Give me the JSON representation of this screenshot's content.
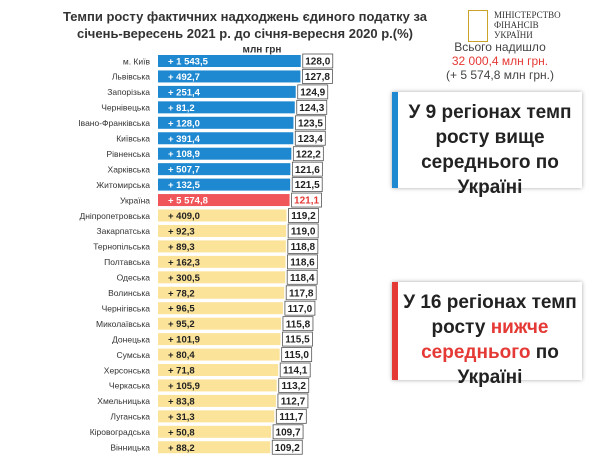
{
  "chart_data": {
    "type": "bar",
    "orientation": "horizontal",
    "title": "Темпи росту фактичних надходжень єдиного податку за січень-вересень 2021 р. до січня-вересня 2020 р.(%)",
    "unit_label": "млн грн",
    "categories": [
      "м. Київ",
      "Львівська",
      "Запорізька",
      "Чернівецька",
      "Івано-Франківська",
      "Київська",
      "Рівненська",
      "Харківська",
      "Житомирська",
      "Україна",
      "Дніпропетровська",
      "Закарпатська",
      "Тернопільська",
      "Полтавська",
      "Одеська",
      "Волинська",
      "Чернігівська",
      "Миколаївська",
      "Донецька",
      "Сумська",
      "Херсонська",
      "Черкаська",
      "Хмельницька",
      "Луганська",
      "Кіровоградська",
      "Вінницька"
    ],
    "values": [
      128.0,
      127.8,
      124.9,
      124.3,
      123.5,
      123.4,
      122.2,
      121.6,
      121.5,
      121.1,
      119.2,
      119.0,
      118.8,
      118.6,
      118.4,
      117.8,
      117.0,
      115.8,
      115.5,
      115.0,
      114.1,
      113.2,
      112.7,
      111.7,
      109.7,
      109.2
    ],
    "value_labels": [
      "128,0",
      "127,8",
      "124,9",
      "124,3",
      "123,5",
      "123,4",
      "122,2",
      "121,6",
      "121,5",
      "121,1",
      "119,2",
      "119,0",
      "118,8",
      "118,6",
      "118,4",
      "117,8",
      "117,0",
      "115,8",
      "115,5",
      "115,0",
      "114,1",
      "113,2",
      "112,7",
      "111,7",
      "109,7",
      "109,2"
    ],
    "increase_labels": [
      "+ 1 543,5",
      "+ 492,7",
      "+ 251,4",
      "+ 81,2",
      "+ 128,0",
      "+ 391,4",
      "+ 108,9",
      "+ 507,7",
      "+ 132,5",
      "+ 5 574,8",
      "+ 409,0",
      "+ 92,3",
      "+ 89,3",
      "+ 162,3",
      "+ 300,5",
      "+ 78,2",
      "+ 96,5",
      "+ 95,2",
      "+ 101,9",
      "+ 80,4",
      "+ 71,8",
      "+ 105,9",
      "+ 83,8",
      "+ 31,3",
      "+ 50,8",
      "+ 88,2"
    ],
    "colors": [
      "#1e88d0",
      "#1e88d0",
      "#1e88d0",
      "#1e88d0",
      "#1e88d0",
      "#1e88d0",
      "#1e88d0",
      "#1e88d0",
      "#1e88d0",
      "#f0555a",
      "#fbe39a",
      "#fbe39a",
      "#fbe39a",
      "#fbe39a",
      "#fbe39a",
      "#fbe39a",
      "#fbe39a",
      "#fbe39a",
      "#fbe39a",
      "#fbe39a",
      "#fbe39a",
      "#fbe39a",
      "#fbe39a",
      "#fbe39a",
      "#fbe39a",
      "#fbe39a"
    ],
    "xlim": [
      40,
      130
    ]
  },
  "logo": {
    "lines": [
      "МІНІСТЕРСТВО",
      "ФІНАНСІВ",
      "УКРАЇНИ"
    ]
  },
  "total": {
    "caption": "Всього надишло",
    "amount": "32 000,4 млн грн.",
    "increase": "(+ 5 574,8 млн грн.)"
  },
  "box_above": {
    "text": "У 9 регіонах темп росту вище середнього по Україні"
  },
  "box_below": {
    "before": "У 16 регіонах темп росту",
    "highlight": "нижче середнього",
    "after": "по Україні"
  }
}
